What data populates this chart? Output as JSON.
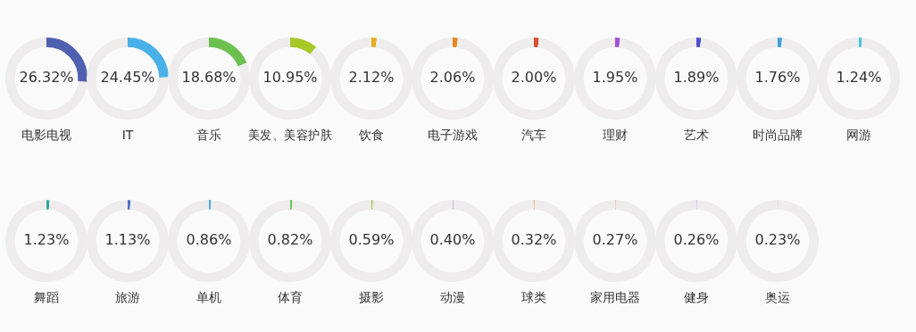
{
  "chart_data": [
    {
      "type": "donut",
      "title": "电影电视",
      "categories": [
        null,
        null
      ],
      "values": [
        26.32,
        73.68
      ],
      "value_labels": [
        "26.32%",
        null
      ],
      "colors": [
        "#5060b0",
        "#eeecec"
      ],
      "legend": false
    },
    {
      "type": "donut",
      "title": "IT",
      "categories": [
        null,
        null
      ],
      "values": [
        24.45,
        75.55
      ],
      "value_labels": [
        "24.45%",
        null
      ],
      "colors": [
        "#4ab0e8",
        "#eeecec"
      ],
      "legend": false
    },
    {
      "type": "donut",
      "title": "音乐",
      "categories": [
        null,
        null
      ],
      "values": [
        18.68,
        81.32
      ],
      "value_labels": [
        "18.68%",
        null
      ],
      "colors": [
        "#6cc050",
        "#eeecec"
      ],
      "legend": false
    },
    {
      "type": "donut",
      "title": "美发、美容护肤",
      "categories": [
        null,
        null
      ],
      "values": [
        10.95,
        89.05
      ],
      "value_labels": [
        "10.95%",
        null
      ],
      "colors": [
        "#a8c828",
        "#eeecec"
      ],
      "legend": false
    },
    {
      "type": "donut",
      "title": "饮食",
      "categories": [
        null,
        null
      ],
      "values": [
        2.12,
        97.88
      ],
      "value_labels": [
        "2.12%",
        null
      ],
      "colors": [
        "#e0b020",
        "#eeecec"
      ],
      "legend": false
    },
    {
      "type": "donut",
      "title": "电子游戏",
      "categories": [
        null,
        null
      ],
      "values": [
        2.06,
        97.94
      ],
      "value_labels": [
        "2.06%",
        null
      ],
      "colors": [
        "#e88820",
        "#eeecec"
      ],
      "legend": false
    },
    {
      "type": "donut",
      "title": "汽车",
      "categories": [
        null,
        null
      ],
      "values": [
        2.0,
        98.0
      ],
      "value_labels": [
        "2.00%",
        null
      ],
      "colors": [
        "#d85030",
        "#eeecec"
      ],
      "legend": false
    },
    {
      "type": "donut",
      "title": "理财",
      "categories": [
        null,
        null
      ],
      "values": [
        1.95,
        98.05
      ],
      "value_labels": [
        "1.95%",
        null
      ],
      "colors": [
        "#a050d8",
        "#eeecec"
      ],
      "legend": false
    },
    {
      "type": "donut",
      "title": "艺术",
      "categories": [
        null,
        null
      ],
      "values": [
        1.89,
        98.11
      ],
      "value_labels": [
        "1.89%",
        null
      ],
      "colors": [
        "#5050c8",
        "#eeecec"
      ],
      "legend": false
    },
    {
      "type": "donut",
      "title": "时尚品牌",
      "categories": [
        null,
        null
      ],
      "values": [
        1.76,
        98.24
      ],
      "value_labels": [
        "1.76%",
        null
      ],
      "colors": [
        "#40a0e0",
        "#eeecec"
      ],
      "legend": false
    },
    {
      "type": "donut",
      "title": "网游",
      "categories": [
        null,
        null
      ],
      "values": [
        1.24,
        98.76
      ],
      "value_labels": [
        "1.24%",
        null
      ],
      "colors": [
        "#40c8d8",
        "#eeecec"
      ],
      "legend": false
    },
    {
      "type": "donut",
      "title": "舞蹈",
      "categories": [
        null,
        null
      ],
      "values": [
        1.23,
        98.77
      ],
      "value_labels": [
        "1.23%",
        null
      ],
      "colors": [
        "#30a8a0",
        "#eeecec"
      ],
      "legend": false
    },
    {
      "type": "donut",
      "title": "旅游",
      "categories": [
        null,
        null
      ],
      "values": [
        1.13,
        98.87
      ],
      "value_labels": [
        "1.13%",
        null
      ],
      "colors": [
        "#5070c0",
        "#eeecec"
      ],
      "legend": false
    },
    {
      "type": "donut",
      "title": "单机",
      "categories": [
        null,
        null
      ],
      "values": [
        0.86,
        99.14
      ],
      "value_labels": [
        "0.86%",
        null
      ],
      "colors": [
        "#50a8e0",
        "#eeecec"
      ],
      "legend": false
    },
    {
      "type": "donut",
      "title": "体育",
      "categories": [
        null,
        null
      ],
      "values": [
        0.82,
        99.18
      ],
      "value_labels": [
        "0.82%",
        null
      ],
      "colors": [
        "#70c060",
        "#eeecec"
      ],
      "legend": false
    },
    {
      "type": "donut",
      "title": "摄影",
      "categories": [
        null,
        null
      ],
      "values": [
        0.59,
        99.41
      ],
      "value_labels": [
        "0.59%",
        null
      ],
      "colors": [
        "#a0c840",
        "#eeecec"
      ],
      "legend": false
    },
    {
      "type": "donut",
      "title": "动漫",
      "categories": [
        null,
        null
      ],
      "values": [
        0.4,
        99.6
      ],
      "value_labels": [
        "0.40%",
        null
      ],
      "colors": [
        "#c0b8d0",
        "#eeecec"
      ],
      "legend": false
    },
    {
      "type": "donut",
      "title": "球类",
      "categories": [
        null,
        null
      ],
      "values": [
        0.32,
        99.68
      ],
      "value_labels": [
        "0.32%",
        null
      ],
      "colors": [
        "#f0a060",
        "#eeecec"
      ],
      "legend": false
    },
    {
      "type": "donut",
      "title": "家用电器",
      "categories": [
        null,
        null
      ],
      "values": [
        0.27,
        99.73
      ],
      "value_labels": [
        "0.27%",
        null
      ],
      "colors": [
        "#e8a090",
        "#eeecec"
      ],
      "legend": false
    },
    {
      "type": "donut",
      "title": "健身",
      "categories": [
        null,
        null
      ],
      "values": [
        0.26,
        99.74
      ],
      "value_labels": [
        "0.26%",
        null
      ],
      "colors": [
        "#c0a0e0",
        "#eeecec"
      ],
      "legend": false
    },
    {
      "type": "donut",
      "title": "奥运",
      "categories": [
        null,
        null
      ],
      "values": [
        0.23,
        99.77
      ],
      "value_labels": [
        "0.23%",
        null
      ],
      "colors": [
        "#c0b0e8",
        "#eeecec"
      ],
      "legend": false
    }
  ]
}
